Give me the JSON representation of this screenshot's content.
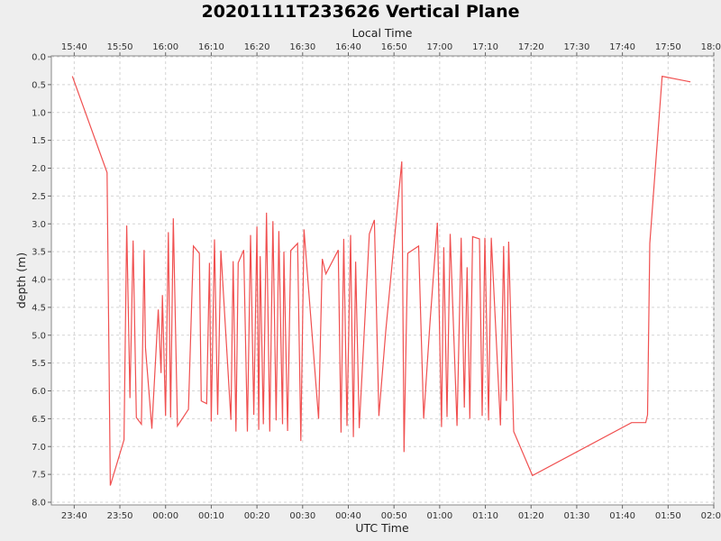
{
  "chart_data": {
    "type": "line",
    "title": "20201111T233626 Vertical Plane",
    "xlabel": "UTC Time",
    "x2label": "Local Time",
    "ylabel": "depth (m)",
    "y_inverted": true,
    "ylim": [
      0.0,
      8.0
    ],
    "y_ticks": [
      "0.0",
      "0.5",
      "1.0",
      "1.5",
      "2.0",
      "2.5",
      "3.0",
      "3.5",
      "4.0",
      "4.5",
      "5.0",
      "5.5",
      "6.0",
      "6.5",
      "7.0",
      "7.5",
      "8.0"
    ],
    "x_ticks_utc": [
      "23:40",
      "23:50",
      "00:00",
      "00:10",
      "00:20",
      "00:30",
      "00:40",
      "00:50",
      "01:00",
      "01:10",
      "01:20",
      "01:30",
      "01:40",
      "01:50",
      "02:00"
    ],
    "x_ticks_local": [
      "15:40",
      "15:50",
      "16:00",
      "16:10",
      "16:20",
      "16:30",
      "16:40",
      "16:50",
      "17:00",
      "17:10",
      "17:20",
      "17:30",
      "17:40",
      "17:50",
      "18:00"
    ],
    "xlim_utc": [
      "23:35",
      "02:00"
    ],
    "grid": true,
    "series_color": "#f05050",
    "series": [
      {
        "values": [
          [
            "23:39.6",
            0.35
          ],
          [
            "23:47.2",
            2.08
          ],
          [
            "23:47.9",
            7.7
          ],
          [
            "23:50.9",
            6.88
          ],
          [
            "23:51.5",
            3.03
          ],
          [
            "23:52.2",
            6.13
          ],
          [
            "23:52.9",
            3.3
          ],
          [
            "23:53.6",
            6.48
          ],
          [
            "23:54.7",
            6.6
          ],
          [
            "23:55.3",
            3.47
          ],
          [
            "23:55.6",
            5.22
          ],
          [
            "23:57.0",
            6.68
          ],
          [
            "23:58.4",
            4.54
          ],
          [
            "23:59.0",
            5.68
          ],
          [
            "23:59.3",
            4.28
          ],
          [
            "24:00.0",
            6.45
          ],
          [
            "24:00.6",
            3.15
          ],
          [
            "24:01.1",
            6.48
          ],
          [
            "24:01.7",
            2.9
          ],
          [
            "24:02.6",
            6.63
          ],
          [
            "24:05.0",
            6.33
          ],
          [
            "24:06.1",
            3.4
          ],
          [
            "24:07.4",
            3.53
          ],
          [
            "24:07.8",
            6.18
          ],
          [
            "24:09.0",
            6.23
          ],
          [
            "24:09.6",
            3.7
          ],
          [
            "24:10.0",
            6.55
          ],
          [
            "24:10.7",
            3.28
          ],
          [
            "24:11.4",
            6.43
          ],
          [
            "24:12.1",
            3.48
          ],
          [
            "24:14.3",
            6.52
          ],
          [
            "24:14.8",
            3.67
          ],
          [
            "24:15.4",
            6.73
          ],
          [
            "24:15.9",
            3.7
          ],
          [
            "24:17.1",
            3.47
          ],
          [
            "24:17.9",
            6.73
          ],
          [
            "24:18.6",
            3.2
          ],
          [
            "24:19.3",
            6.43
          ],
          [
            "24:20.0",
            3.05
          ],
          [
            "24:20.4",
            6.7
          ],
          [
            "24:20.7",
            3.58
          ],
          [
            "24:21.4",
            6.6
          ],
          [
            "24:22.1",
            2.8
          ],
          [
            "24:22.8",
            6.73
          ],
          [
            "24:23.5",
            2.95
          ],
          [
            "24:24.2",
            6.53
          ],
          [
            "24:24.8",
            3.13
          ],
          [
            "24:25.6",
            6.6
          ],
          [
            "24:25.9",
            3.5
          ],
          [
            "24:26.7",
            6.72
          ],
          [
            "24:27.4",
            3.48
          ],
          [
            "24:28.9",
            3.35
          ],
          [
            "24:29.6",
            6.9
          ],
          [
            "24:30.3",
            3.1
          ],
          [
            "24:33.5",
            6.5
          ],
          [
            "24:34.3",
            3.63
          ],
          [
            "24:35.1",
            3.9
          ],
          [
            "24:37.8",
            3.47
          ],
          [
            "24:38.4",
            6.75
          ],
          [
            "24:39.0",
            3.27
          ],
          [
            "24:39.7",
            6.63
          ],
          [
            "24:40.5",
            3.2
          ],
          [
            "24:41.1",
            6.83
          ],
          [
            "24:41.6",
            3.68
          ],
          [
            "24:42.4",
            6.67
          ],
          [
            "24:44.6",
            3.18
          ],
          [
            "24:45.7",
            2.93
          ],
          [
            "24:46.7",
            6.45
          ],
          [
            "24:48.2",
            4.93
          ],
          [
            "24:51.7",
            1.88
          ],
          [
            "24:52.2",
            7.1
          ],
          [
            "24:53.0",
            3.53
          ],
          [
            "24:55.4",
            3.4
          ],
          [
            "24:56.5",
            6.5
          ],
          [
            "24:57.9",
            4.75
          ],
          [
            "24:59.5",
            2.98
          ],
          [
            "25:00.4",
            6.65
          ],
          [
            "25:00.9",
            3.42
          ],
          [
            "25:01.6",
            6.47
          ],
          [
            "25:02.3",
            3.18
          ],
          [
            "25:03.8",
            6.63
          ],
          [
            "25:04.7",
            3.25
          ],
          [
            "25:05.4",
            6.3
          ],
          [
            "25:06.0",
            3.78
          ],
          [
            "25:06.6",
            6.5
          ],
          [
            "25:07.2",
            3.23
          ],
          [
            "25:08.7",
            3.27
          ],
          [
            "25:09.3",
            6.45
          ],
          [
            "25:09.9",
            3.25
          ],
          [
            "25:10.7",
            6.53
          ],
          [
            "25:11.3",
            3.25
          ],
          [
            "25:13.3",
            6.62
          ],
          [
            "25:14.0",
            3.4
          ],
          [
            "25:14.6",
            6.18
          ],
          [
            "25:15.1",
            3.32
          ],
          [
            "25:16.2",
            6.73
          ],
          [
            "25:20.3",
            7.52
          ],
          [
            "25:42.0",
            6.57
          ],
          [
            "25:45.1",
            6.57
          ],
          [
            "25:45.5",
            6.43
          ],
          [
            "25:46.0",
            3.35
          ],
          [
            "25:48.7",
            0.35
          ],
          [
            "25:54.9",
            0.45
          ]
        ]
      }
    ]
  }
}
